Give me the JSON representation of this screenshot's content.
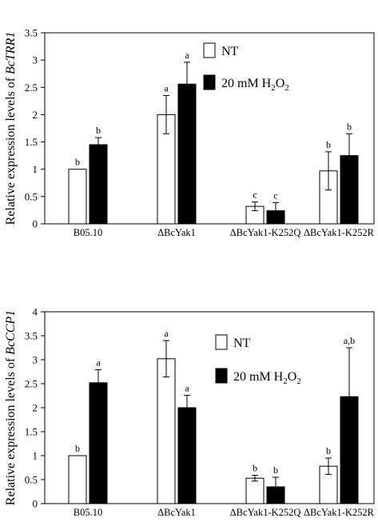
{
  "chart_data": [
    {
      "type": "bar",
      "categories": [
        "B05.10",
        "ΔBcYak1",
        "ΔBcYak1-K252Q",
        "ΔBcYak1-K252R"
      ],
      "ylabel_prefix": "Relative expression levels of ",
      "ylabel_gene": "BcTRR1",
      "ylim": [
        0,
        3.5
      ],
      "yticks": [
        "0",
        "0.5",
        "1",
        "1.5",
        "2",
        "2.5",
        "3",
        "3.5"
      ],
      "grid": false,
      "legend_position": "top-right",
      "series": [
        {
          "name": "NT",
          "color": "#ffffff",
          "values": [
            1.0,
            2.0,
            0.32,
            0.97
          ],
          "errors": [
            0.0,
            0.35,
            0.08,
            0.35
          ],
          "letters": [
            "b",
            "a",
            "c",
            "b"
          ]
        },
        {
          "name": "20 mM H2O2",
          "name_parts": [
            "20 mM H",
            "2",
            "O",
            "2"
          ],
          "color": "#000000",
          "values": [
            1.45,
            2.56,
            0.24,
            1.25
          ],
          "errors": [
            0.13,
            0.4,
            0.15,
            0.4
          ],
          "letters": [
            "b",
            "a",
            "c",
            "b"
          ]
        }
      ]
    },
    {
      "type": "bar",
      "categories": [
        "B05.10",
        "ΔBcYak1",
        "ΔBcYak1-K252Q",
        "ΔBcYak1-K252R"
      ],
      "ylabel_prefix": "Relative expression levels of ",
      "ylabel_gene": "BcCCP1",
      "ylim": [
        0,
        4
      ],
      "yticks": [
        "0",
        "0.5",
        "1",
        "1.5",
        "2",
        "2.5",
        "3",
        "3.5",
        "4"
      ],
      "grid": false,
      "legend_position": "top-right",
      "series": [
        {
          "name": "NT",
          "color": "#ffffff",
          "values": [
            1.0,
            3.02,
            0.53,
            0.78
          ],
          "errors": [
            0.0,
            0.38,
            0.06,
            0.17
          ],
          "letters": [
            "b",
            "a",
            "b",
            "b"
          ]
        },
        {
          "name": "20 mM H2O2",
          "name_parts": [
            "20 mM H",
            "2",
            "O",
            "2"
          ],
          "color": "#000000",
          "values": [
            2.52,
            2.0,
            0.35,
            2.23
          ],
          "errors": [
            0.27,
            0.26,
            0.2,
            1.02
          ],
          "letters": [
            "a",
            "a",
            "b",
            "a,b"
          ]
        }
      ]
    }
  ]
}
